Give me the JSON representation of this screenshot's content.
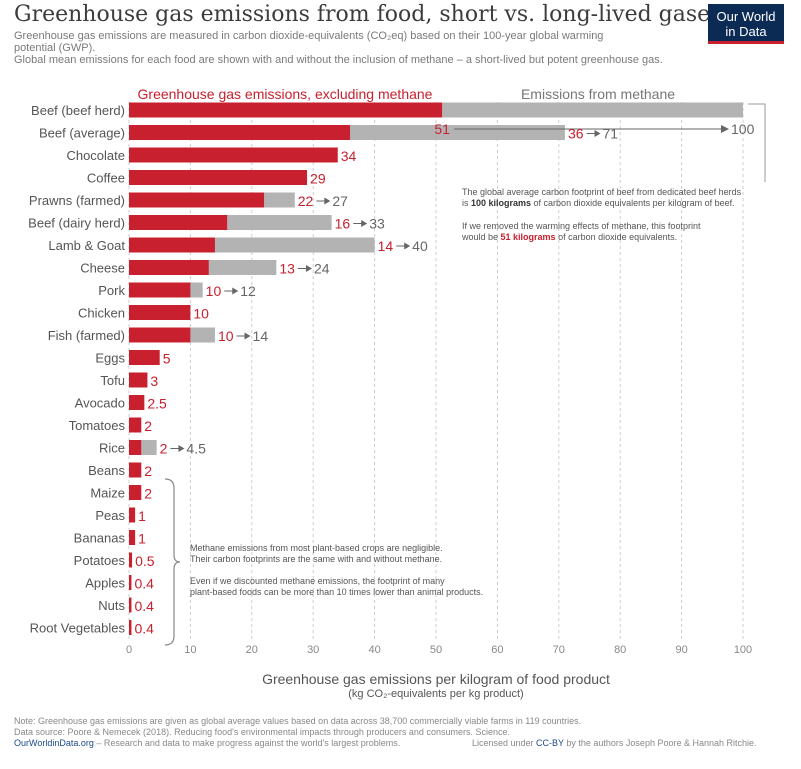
{
  "header": {
    "title": "Greenhouse gas emissions from food, short vs. long-lived gases",
    "subtitle_line1": "Greenhouse gas emissions are measured in carbon dioxide-equivalents (CO₂eq) based on their 100-year global warming",
    "subtitle_line2": "potential (GWP).",
    "subtitle_line3": "Global mean emissions for each food are shown with and without the inclusion of methane – a short-lived but potent greenhouse gas.",
    "logo_line1": "Our World",
    "logo_line2": "in Data"
  },
  "colors": {
    "excl_methane": "#c8202f",
    "methane": "#b3b3b3",
    "text": "#555555",
    "grid": "#cccccc"
  },
  "chart_data": {
    "type": "bar",
    "orientation": "horizontal",
    "stacked": true,
    "categories": [
      "Beef (beef herd)",
      "Beef (average)",
      "Chocolate",
      "Coffee",
      "Prawns (farmed)",
      "Beef (dairy herd)",
      "Lamb & Goat",
      "Cheese",
      "Pork",
      "Chicken",
      "Fish (farmed)",
      "Eggs",
      "Tofu",
      "Avocado",
      "Tomatoes",
      "Rice",
      "Beans",
      "Maize",
      "Peas",
      "Bananas",
      "Potatoes",
      "Apples",
      "Nuts",
      "Root Vegetables"
    ],
    "series": [
      {
        "name": "Greenhouse gas emissions, excluding methane",
        "values": [
          51,
          36,
          34,
          29,
          22,
          16,
          14,
          13,
          10,
          10,
          10,
          5,
          3,
          2.5,
          2,
          2,
          2,
          2,
          1,
          1,
          0.5,
          0.4,
          0.4,
          0.4
        ]
      },
      {
        "name": "Emissions from methane",
        "totals": [
          100,
          71,
          34,
          29,
          27,
          33,
          40,
          24,
          12,
          10,
          14,
          5,
          3,
          2.5,
          2,
          4.5,
          2,
          2,
          1,
          1,
          0.5,
          0.4,
          0.4,
          0.4
        ]
      }
    ],
    "labels_excl": [
      "51",
      "36",
      "34",
      "29",
      "22",
      "16",
      "14",
      "13",
      "10",
      "10",
      "10",
      "5",
      "3",
      "2.5",
      "2",
      "2",
      "2",
      "2",
      "1",
      "1",
      "0.5",
      "0.4",
      "0.4",
      "0.4"
    ],
    "labels_total": [
      "100",
      "71",
      "",
      "",
      "27",
      "33",
      "40",
      "24",
      "12",
      "",
      "14",
      "",
      "",
      "",
      "",
      "4.5",
      "",
      "",
      "",
      "",
      "",
      "",
      "",
      ""
    ],
    "xlim": [
      0,
      100
    ],
    "xticks": [
      "0",
      "10",
      "20",
      "30",
      "40",
      "50",
      "60",
      "70",
      "80",
      "90",
      "100"
    ],
    "xlabel": "Greenhouse gas emissions per kilogram of food product",
    "xlabel_sub": "(kg CO₂-equivalents per kg product)",
    "grid": true,
    "legend_placement": "top"
  },
  "annotations": {
    "beef_note_1a": "The global average carbon footprint of beef from dedicated beef herds",
    "beef_note_1b_pre": "is ",
    "beef_note_1b_bold": "100 kilograms",
    "beef_note_1b_post": " of carbon dioxide equivalents per kilogram of beef.",
    "beef_note_2a": "If we removed the warming effects of methane, this footprint",
    "beef_note_2b_pre": "would be ",
    "beef_note_2b_bold": "51 kilograms",
    "beef_note_2b_post": " of carbon dioxide equivalents.",
    "plant_note_1": "Methane emissions from most plant-based crops are negligible.",
    "plant_note_2": "Their carbon footprints are the same with and without methane.",
    "plant_note_3": "Even if we discounted methane emissions, the footprint of many",
    "plant_note_4": "plant-based foods can be more than 10 times lower than animal products."
  },
  "footer": {
    "note": "Note: Greenhouse gas emissions are given as global average values based on data across 38,700 commercially viable farms in 119 countries.",
    "source": "Data source: Poore & Nemecek (2018). Reducing food's environmental impacts through producers and consumers. Science.",
    "site": "OurWorldinData.org",
    "tagline": " – Research and data to make progress against the world's largest problems.",
    "license_pre": "Licensed under ",
    "license_link": "CC-BY",
    "license_post": " by the authors Joseph Poore & Hannah Ritchie."
  }
}
